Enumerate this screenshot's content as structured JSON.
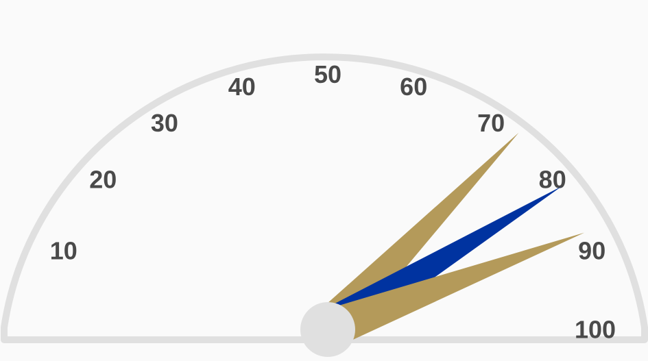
{
  "chart_data": {
    "type": "gauge",
    "title": "",
    "scale": {
      "min": 0,
      "max": 100
    },
    "tick_labels": [
      "10",
      "20",
      "30",
      "40",
      "50",
      "60",
      "70",
      "80",
      "90",
      "100"
    ],
    "ticks": [
      10,
      20,
      30,
      40,
      50,
      60,
      70,
      80,
      90,
      100
    ],
    "series": [
      {
        "value": 74.5,
        "color": "#b49a5a"
      },
      {
        "value": 82.5,
        "color": "#0033a0"
      },
      {
        "value": 88.5,
        "color": "#b49a5a"
      }
    ],
    "colors": {
      "background": "#fafafa",
      "arc": "#e0e0e0",
      "hub": "#e0e0e0",
      "label": "#4a4a4a"
    }
  }
}
